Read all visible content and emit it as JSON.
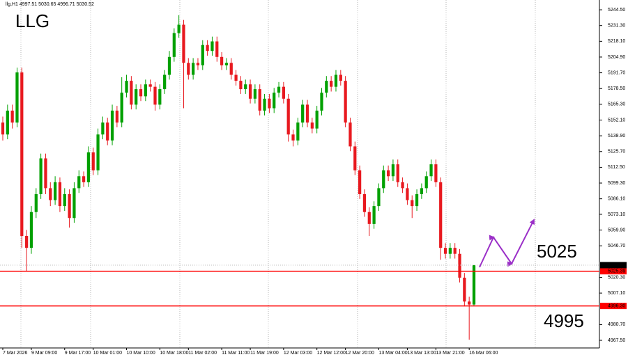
{
  "chart_data": {
    "type": "candlestick",
    "title": "llg,H1 4997.51 5030.65 4996.71 5030.52",
    "annotations": [
      "LLG",
      "5025",
      "4995"
    ],
    "up_color": "#00a000",
    "down_color": "#e8191f",
    "ylim": [
      4961.1,
      5252.7
    ],
    "yticks": [
      {
        "value": 5244.5,
        "label": "5244.50"
      },
      {
        "value": 5231.3,
        "label": "5231.30"
      },
      {
        "value": 5218.1,
        "label": "5218.10"
      },
      {
        "value": 5204.9,
        "label": "5204.90"
      },
      {
        "value": 5191.7,
        "label": "5191.70"
      },
      {
        "value": 5178.5,
        "label": "5178.50"
      },
      {
        "value": 5165.3,
        "label": "5165.30"
      },
      {
        "value": 5152.1,
        "label": "5152.10"
      },
      {
        "value": 5138.9,
        "label": "5138.90"
      },
      {
        "value": 5125.7,
        "label": "5125.70"
      },
      {
        "value": 5112.5,
        "label": "5112.50"
      },
      {
        "value": 5099.3,
        "label": "5099.30"
      },
      {
        "value": 5086.1,
        "label": "5086.10"
      },
      {
        "value": 5073.1,
        "label": "5073.10"
      },
      {
        "value": 5059.9,
        "label": "5059.90"
      },
      {
        "value": 5046.7,
        "label": "5046.70"
      },
      {
        "value": 5020.3,
        "label": "5020.30"
      },
      {
        "value": 5007.1,
        "label": "5007.10"
      },
      {
        "value": 4980.7,
        "label": "4980.70"
      },
      {
        "value": 4967.5,
        "label": "4967.50"
      }
    ],
    "levels": [
      {
        "value": 5025.39,
        "label": "5025.39",
        "color": "#ff0000"
      },
      {
        "value": 4996.3,
        "label": "4996.30",
        "color": "#ff0000"
      }
    ],
    "last_price": 5030.52,
    "categories": [
      "7 Mar 2026",
      null,
      null,
      null,
      null,
      null,
      "9 Mar 09:00",
      null,
      null,
      null,
      null,
      null,
      null,
      "9 Mar 17:00",
      null,
      null,
      null,
      null,
      null,
      "10 Mar 01:00",
      null,
      null,
      null,
      null,
      null,
      null,
      "10 Mar 10:00",
      null,
      null,
      null,
      null,
      null,
      null,
      "10 Mar 18:00",
      null,
      null,
      null,
      null,
      null,
      "11 Mar 02:00",
      null,
      null,
      null,
      null,
      null,
      null,
      "11 Mar 11:00",
      null,
      null,
      null,
      null,
      null,
      "11 Mar 19:00",
      null,
      null,
      null,
      null,
      null,
      null,
      "12 Mar 03:00",
      null,
      null,
      null,
      null,
      null,
      null,
      "12 Mar 12:00",
      null,
      null,
      null,
      null,
      null,
      "12 Mar 20:00",
      null,
      null,
      null,
      null,
      null,
      null,
      "13 Mar 04:00",
      null,
      null,
      null,
      null,
      null,
      "13 Mar 13:00",
      null,
      null,
      null,
      null,
      null,
      "13 Mar 21:00",
      null,
      null,
      null,
      null,
      null,
      null,
      "16 Mar 06:00",
      null
    ],
    "ohlc": [
      [
        5150,
        5155,
        5135,
        5140
      ],
      [
        5140,
        5165,
        5136,
        5160
      ],
      [
        5160,
        5165,
        5145,
        5150
      ],
      [
        5150,
        5196,
        5146,
        5192
      ],
      [
        5192,
        5196,
        5045,
        5055
      ],
      [
        5055,
        5060,
        5025,
        5045
      ],
      [
        5045,
        5080,
        5040,
        5075
      ],
      [
        5075,
        5095,
        5070,
        5090
      ],
      [
        5090,
        5124,
        5086,
        5120
      ],
      [
        5120,
        5124,
        5090,
        5095
      ],
      [
        5095,
        5100,
        5080,
        5085
      ],
      [
        5085,
        5105,
        5081,
        5100
      ],
      [
        5100,
        5104,
        5075,
        5080
      ],
      [
        5080,
        5095,
        5076,
        5090
      ],
      [
        5090,
        5094,
        5062,
        5070
      ],
      [
        5070,
        5100,
        5066,
        5095
      ],
      [
        5095,
        5110,
        5091,
        5105
      ],
      [
        5105,
        5109,
        5096,
        5100
      ],
      [
        5100,
        5130,
        5096,
        5125
      ],
      [
        5125,
        5129,
        5106,
        5110
      ],
      [
        5110,
        5145,
        5106,
        5140
      ],
      [
        5140,
        5155,
        5136,
        5150
      ],
      [
        5150,
        5154,
        5131,
        5135
      ],
      [
        5135,
        5165,
        5131,
        5160
      ],
      [
        5160,
        5164,
        5146,
        5150
      ],
      [
        5150,
        5188,
        5146,
        5175
      ],
      [
        5175,
        5190,
        5171,
        5185
      ],
      [
        5185,
        5189,
        5161,
        5165
      ],
      [
        5165,
        5182,
        5161,
        5178
      ],
      [
        5178,
        5182,
        5168,
        5172
      ],
      [
        5172,
        5186,
        5168,
        5182
      ],
      [
        5182,
        5186,
        5176,
        5180
      ],
      [
        5180,
        5184,
        5160,
        5165
      ],
      [
        5165,
        5182,
        5161,
        5178
      ],
      [
        5178,
        5194,
        5174,
        5190
      ],
      [
        5190,
        5210,
        5186,
        5205
      ],
      [
        5205,
        5229,
        5201,
        5225
      ],
      [
        5225,
        5240,
        5221,
        5232
      ],
      [
        5232,
        5236,
        5162,
        5200
      ],
      [
        5200,
        5204,
        5186,
        5190
      ],
      [
        5190,
        5204,
        5186,
        5200
      ],
      [
        5200,
        5204,
        5194,
        5198
      ],
      [
        5198,
        5219,
        5194,
        5215
      ],
      [
        5215,
        5219,
        5206,
        5210
      ],
      [
        5210,
        5222,
        5206,
        5218
      ],
      [
        5218,
        5222,
        5201,
        5205
      ],
      [
        5205,
        5209,
        5194,
        5198
      ],
      [
        5198,
        5204,
        5194,
        5200
      ],
      [
        5200,
        5204,
        5186,
        5190
      ],
      [
        5190,
        5194,
        5181,
        5185
      ],
      [
        5185,
        5189,
        5174,
        5178
      ],
      [
        5178,
        5186,
        5174,
        5182
      ],
      [
        5182,
        5186,
        5166,
        5170
      ],
      [
        5170,
        5182,
        5166,
        5178
      ],
      [
        5178,
        5182,
        5156,
        5160
      ],
      [
        5160,
        5174,
        5156,
        5170
      ],
      [
        5170,
        5174,
        5158,
        5162
      ],
      [
        5162,
        5179,
        5158,
        5175
      ],
      [
        5175,
        5184,
        5171,
        5180
      ],
      [
        5180,
        5184,
        5166,
        5170
      ],
      [
        5170,
        5174,
        5134,
        5140
      ],
      [
        5140,
        5144,
        5130,
        5135
      ],
      [
        5135,
        5154,
        5131,
        5150
      ],
      [
        5150,
        5169,
        5146,
        5165
      ],
      [
        5165,
        5169,
        5146,
        5150
      ],
      [
        5150,
        5154,
        5141,
        5145
      ],
      [
        5145,
        5164,
        5141,
        5160
      ],
      [
        5160,
        5179,
        5156,
        5175
      ],
      [
        5175,
        5189,
        5171,
        5185
      ],
      [
        5185,
        5189,
        5176,
        5180
      ],
      [
        5180,
        5194,
        5176,
        5190
      ],
      [
        5190,
        5194,
        5181,
        5185
      ],
      [
        5185,
        5189,
        5146,
        5150
      ],
      [
        5150,
        5154,
        5126,
        5130
      ],
      [
        5130,
        5134,
        5106,
        5110
      ],
      [
        5110,
        5114,
        5086,
        5090
      ],
      [
        5090,
        5094,
        5071,
        5075
      ],
      [
        5075,
        5079,
        5055,
        5065
      ],
      [
        5065,
        5084,
        5061,
        5080
      ],
      [
        5080,
        5099,
        5076,
        5095
      ],
      [
        5095,
        5114,
        5091,
        5110
      ],
      [
        5110,
        5114,
        5101,
        5105
      ],
      [
        5105,
        5119,
        5101,
        5115
      ],
      [
        5115,
        5119,
        5096,
        5100
      ],
      [
        5100,
        5104,
        5091,
        5095
      ],
      [
        5095,
        5099,
        5081,
        5085
      ],
      [
        5085,
        5089,
        5070,
        5080
      ],
      [
        5080,
        5094,
        5076,
        5090
      ],
      [
        5090,
        5099,
        5086,
        5095
      ],
      [
        5095,
        5109,
        5091,
        5105
      ],
      [
        5105,
        5119,
        5101,
        5115
      ],
      [
        5115,
        5119,
        5096,
        5100
      ],
      [
        5100,
        5104,
        5035,
        5045
      ],
      [
        5045,
        5049,
        5036,
        5040
      ],
      [
        5040,
        5049,
        5036,
        5045
      ],
      [
        5045,
        5049,
        5036,
        5040
      ],
      [
        5040,
        5044,
        5016,
        5020
      ],
      [
        5020,
        5024,
        4996,
        5000
      ],
      [
        5000,
        5004,
        4968,
        4997.51
      ],
      [
        4997.51,
        5030.65,
        4996.71,
        5030.52
      ]
    ]
  }
}
